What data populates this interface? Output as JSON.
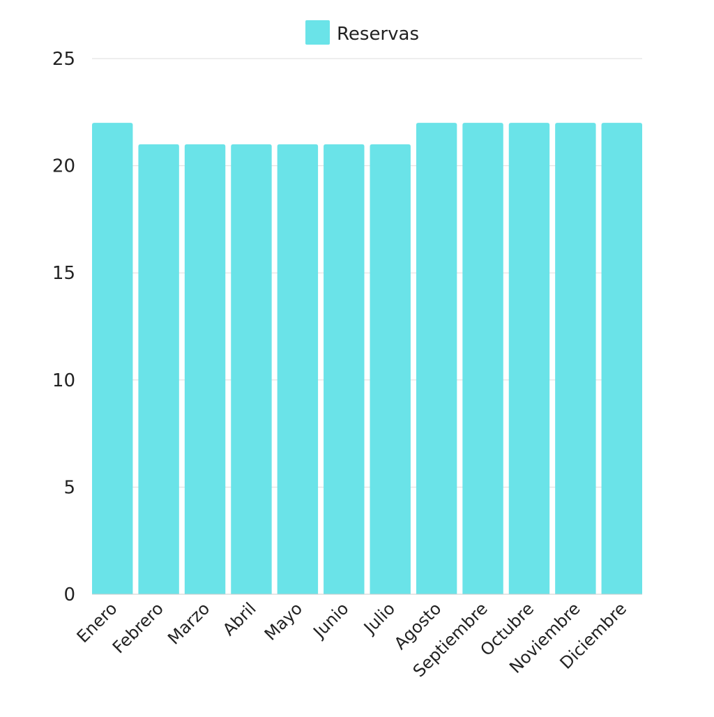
{
  "chart_data": {
    "type": "bar",
    "title": "",
    "xlabel": "",
    "ylabel": "",
    "categories": [
      "Enero",
      "Febrero",
      "Marzo",
      "Abril",
      "Mayo",
      "Junio",
      "Julio",
      "Agosto",
      "Septiembre",
      "Octubre",
      "Noviembre",
      "Diciembre"
    ],
    "series": [
      {
        "name": "Reservas",
        "color": "#6ae3e8",
        "values": [
          22,
          21,
          21,
          21,
          21,
          21,
          21,
          22,
          22,
          22,
          22,
          22
        ]
      }
    ],
    "ylim": [
      0,
      25
    ],
    "yticks": [
      0,
      5,
      10,
      15,
      20,
      25
    ],
    "grid": true,
    "legend": "top-center"
  }
}
